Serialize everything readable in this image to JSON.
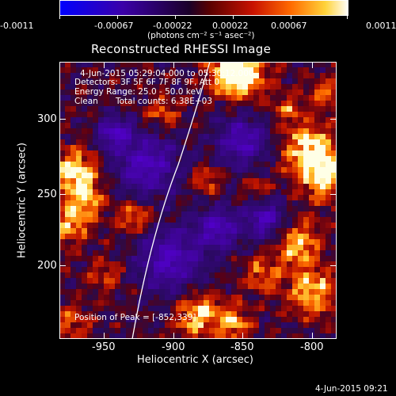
{
  "colorbar": {
    "tick_labels": [
      "-0.0011",
      "-0.00067",
      "-0.00022",
      "0.00022",
      "0.00067",
      "0.0011"
    ],
    "unit_label": "(photons cm⁻² s⁻¹ asec⁻²)",
    "colors": [
      "#0000ff",
      "#3b00a8",
      "#1a0028",
      "#5a0000",
      "#c81200",
      "#ff6a00",
      "#ffd33a",
      "#ffffff"
    ]
  },
  "plot": {
    "title": "Reconstructed RHESSI Image",
    "x_label": "Heliocentric X (arcsec)",
    "y_label": "Heliocentric Y (arcsec)",
    "x_ticks": [
      "-950",
      "-900",
      "-850",
      "-800"
    ],
    "y_ticks": [
      "300",
      "250",
      "200"
    ],
    "x_range": [
      -982,
      -782
    ],
    "y_range": [
      143,
      343
    ],
    "peak_label": "Position of Peak = [-852,339]"
  },
  "info": {
    "time_range": "4-Jun-2015 05:29:04.000 to 05:30:12.000",
    "detectors": "Detectors: 3F 5F 6F 7F 8F 9F, Att 0",
    "energy_range": "Energy Range: 25.0 - 50.0 keV",
    "clean_label": "Clean",
    "total_counts": "Total counts: 6.38E+03"
  },
  "footer": {
    "timestamp": "4-Jun-2015 09:21"
  }
}
